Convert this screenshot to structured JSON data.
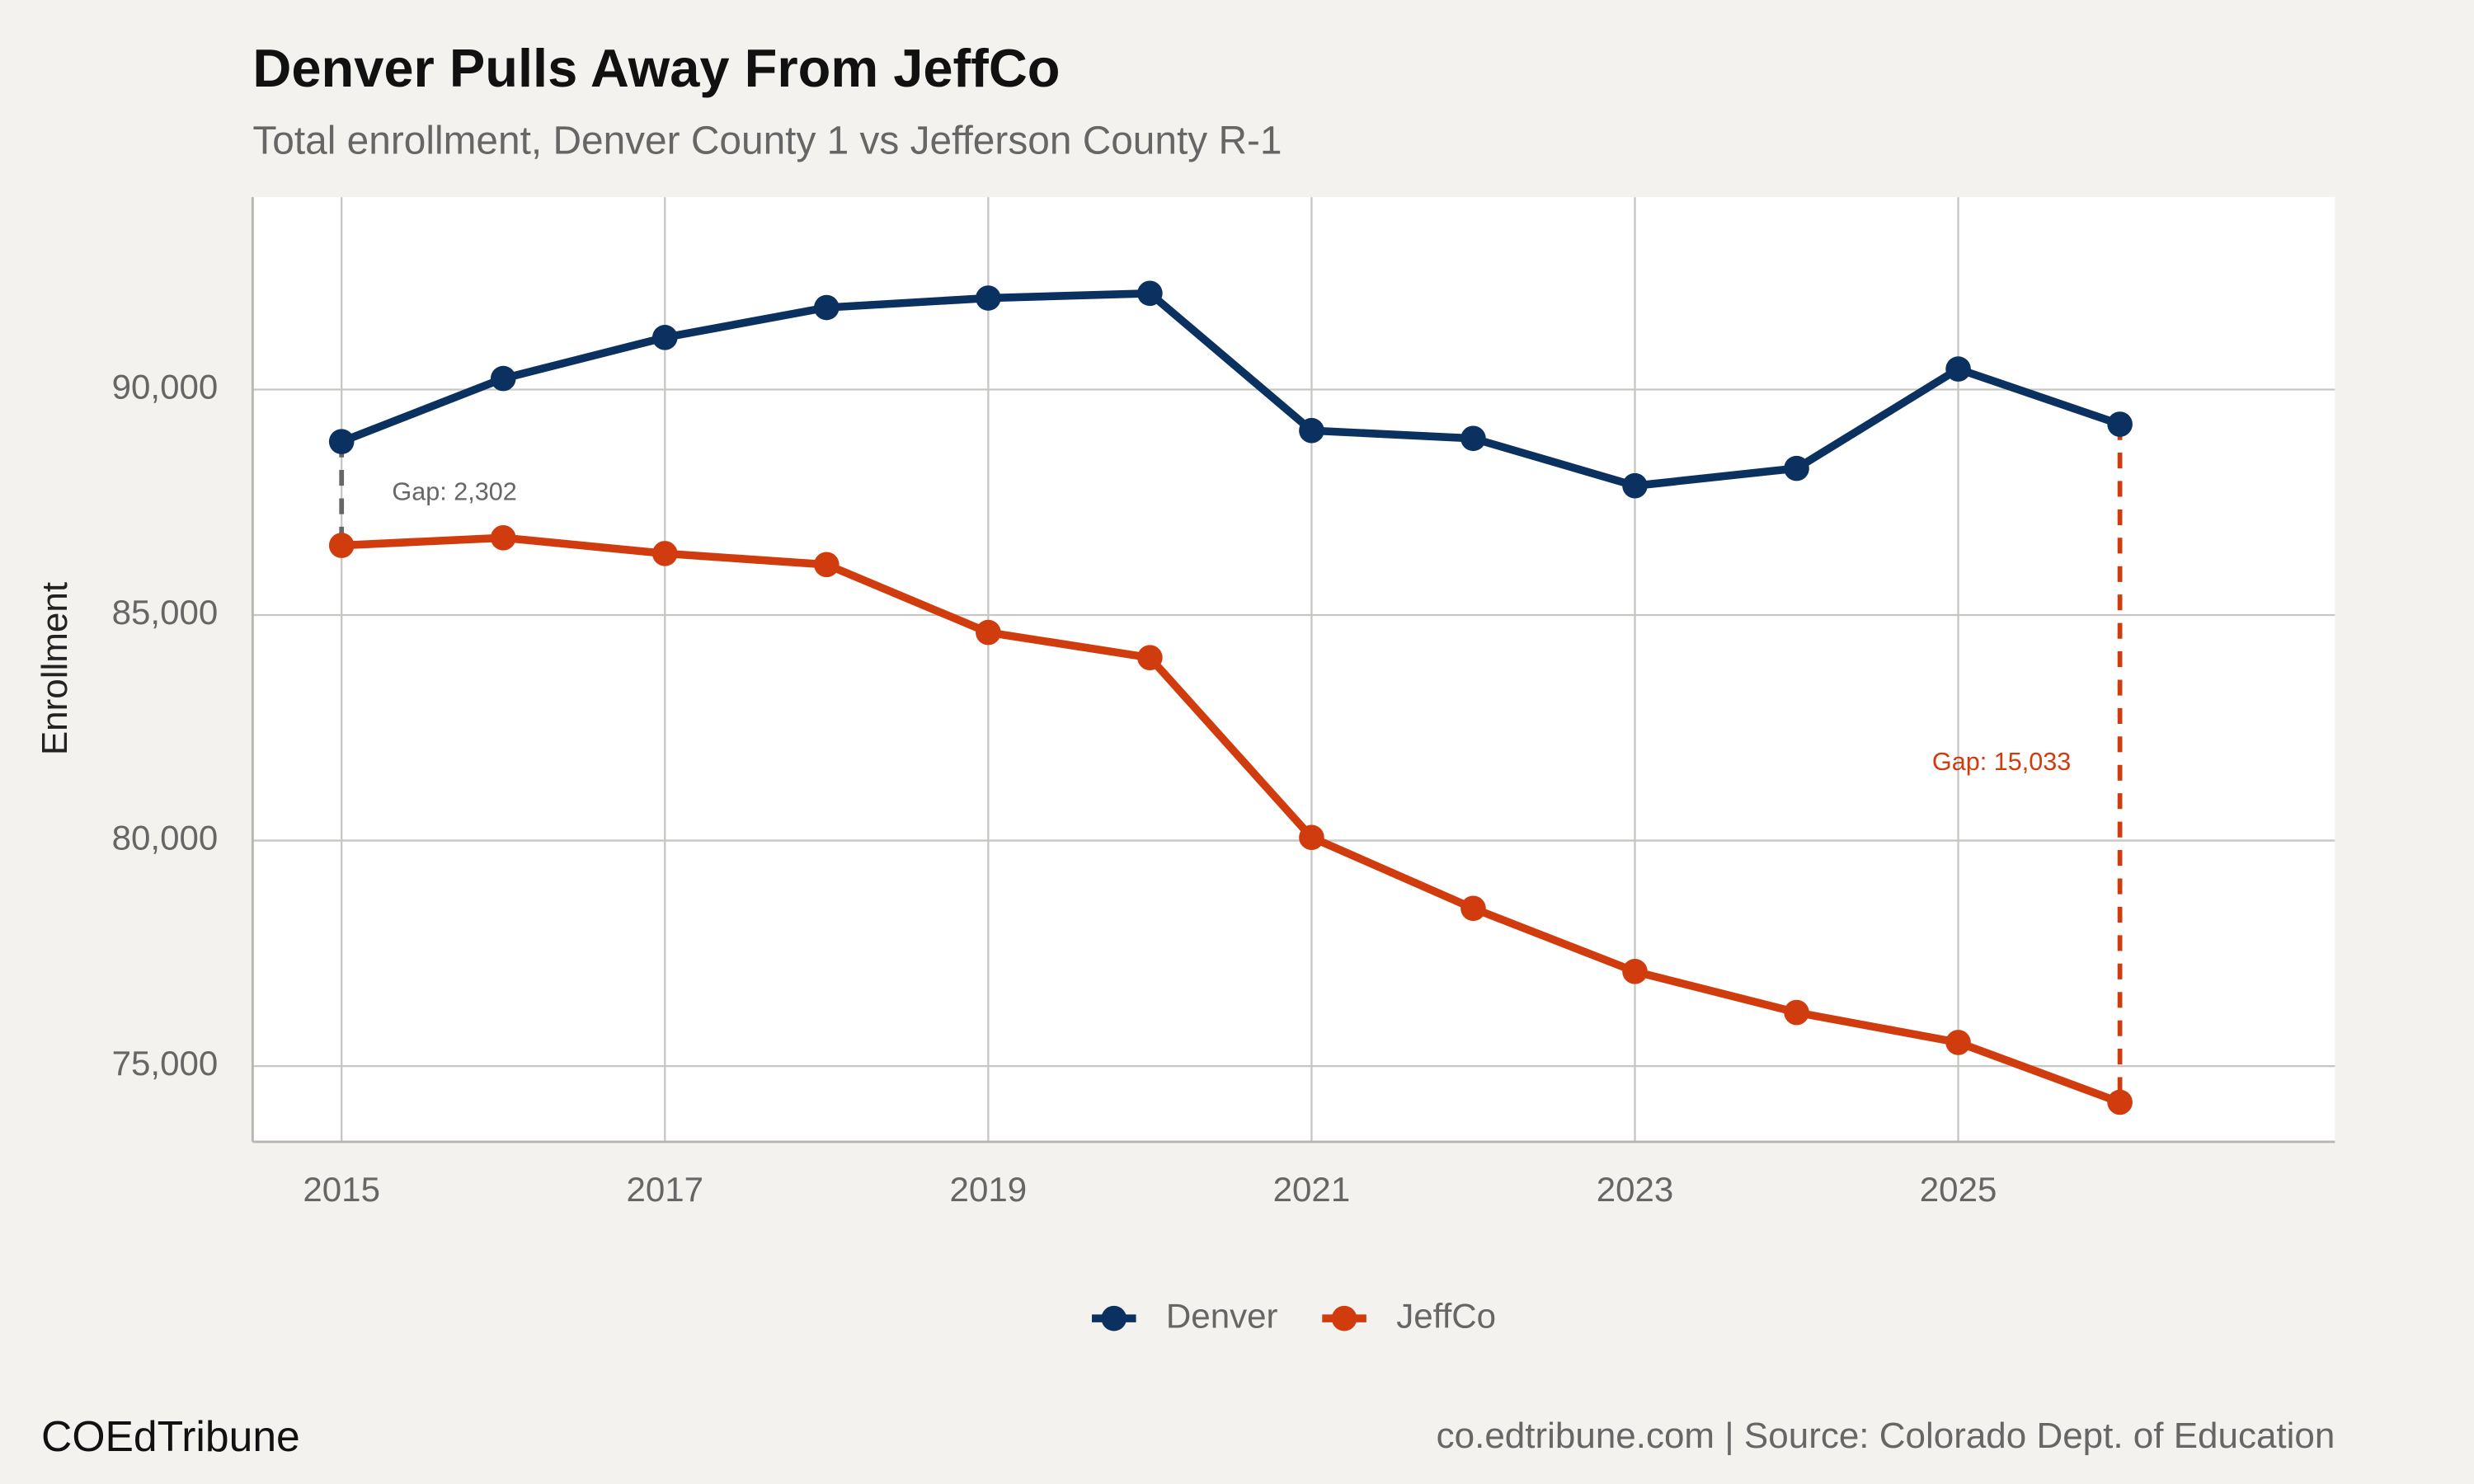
{
  "chart_data": {
    "type": "line",
    "title": "Denver Pulls Away From JeffCo",
    "subtitle": "Total enrollment, Denver County 1 vs Jefferson County R-1",
    "y_label": "Enrollment",
    "x": [
      2015,
      2016,
      2017,
      2018,
      2019,
      2020,
      2021,
      2022,
      2023,
      2024,
      2025,
      2026
    ],
    "series": [
      {
        "name": "Denver",
        "color": "#0b3161",
        "values": [
          88846,
          90245,
          91154,
          91818,
          92028,
          92133,
          89091,
          88916,
          87867,
          88252,
          90455,
          89231
        ]
      },
      {
        "name": "JeffCo",
        "color": "#d13c0f",
        "values": [
          86544,
          86713,
          86364,
          86119,
          84615,
          84056,
          80070,
          78497,
          77098,
          76189,
          75524,
          74198
        ]
      }
    ],
    "annotations": [
      {
        "text": "Gap: 2,302",
        "x": 2015,
        "color": "#666666"
      },
      {
        "text": "Gap: 15,033",
        "x": 2026,
        "color": "#d13c0f"
      }
    ],
    "xlim": [
      2014.45,
      2027.33
    ],
    "xticks": [
      2015,
      2017,
      2019,
      2021,
      2023,
      2025
    ],
    "ylim": [
      73322,
      94266
    ],
    "yticks": [
      {
        "value": 75000,
        "label": "75,000"
      },
      {
        "value": 80000,
        "label": "80,000"
      },
      {
        "value": 85000,
        "label": "85,000"
      },
      {
        "value": 90000,
        "label": "90,000"
      }
    ],
    "grid": true,
    "legend": "bottom",
    "brand": "COEdTribune",
    "caption": "co.edtribune.com | Source: Colorado Dept. of Education"
  }
}
